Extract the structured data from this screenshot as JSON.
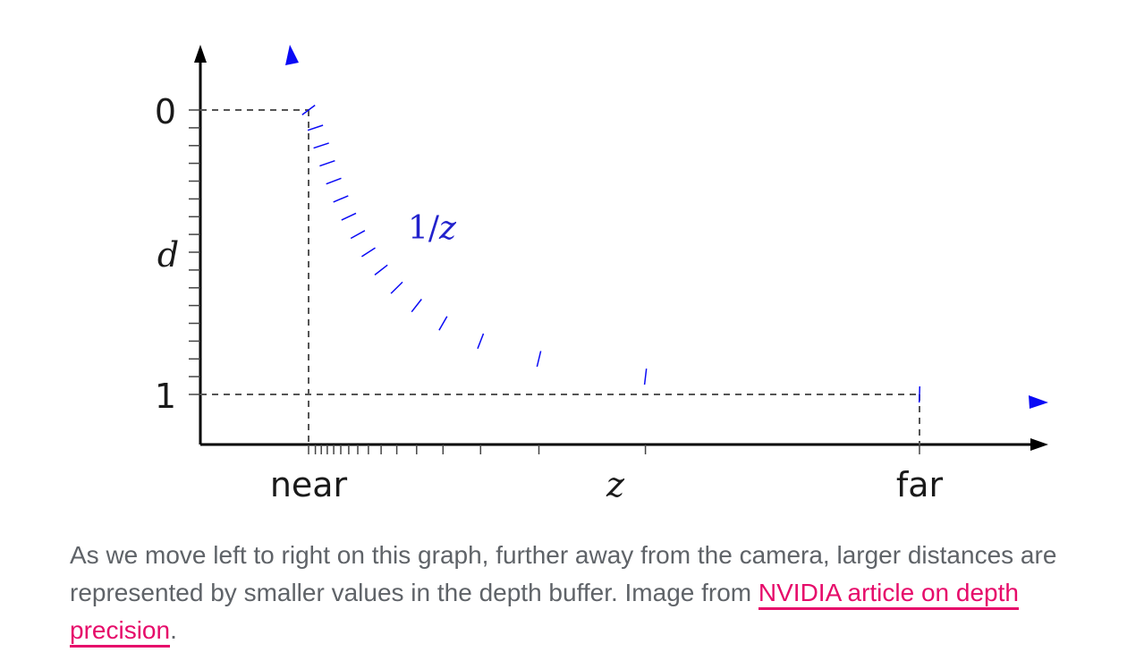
{
  "chart_data": {
    "type": "line",
    "series": [
      {
        "name": "1/z",
        "x": [
          1.0,
          1.25,
          1.5,
          2.0,
          3.0,
          4.0,
          6.0,
          10.0,
          16.0
        ],
        "y": [
          0.0,
          0.2,
          0.333,
          0.5,
          0.667,
          0.75,
          0.833,
          0.9,
          0.9375
        ]
      }
    ],
    "color": "#0a0af5",
    "curve_label": {
      "numerator": "1/",
      "variable": "z"
    },
    "xlabel": "z",
    "ylabel": "d",
    "x_tick_labels": {
      "near": "near",
      "far": "far"
    },
    "y_tick_labels": {
      "top": "0",
      "bottom": "1"
    },
    "y_axis_direction": "inverted (0 at top, 1 at bottom)",
    "x_scale": "depth z from near to far",
    "grid": false
  },
  "caption": {
    "text_before": "As we move left to right on this graph, further away from the camera, larger distances are represented by smaller values in the depth buffer. Image from ",
    "link_text": "NVIDIA article on depth precision",
    "text_after": "."
  }
}
